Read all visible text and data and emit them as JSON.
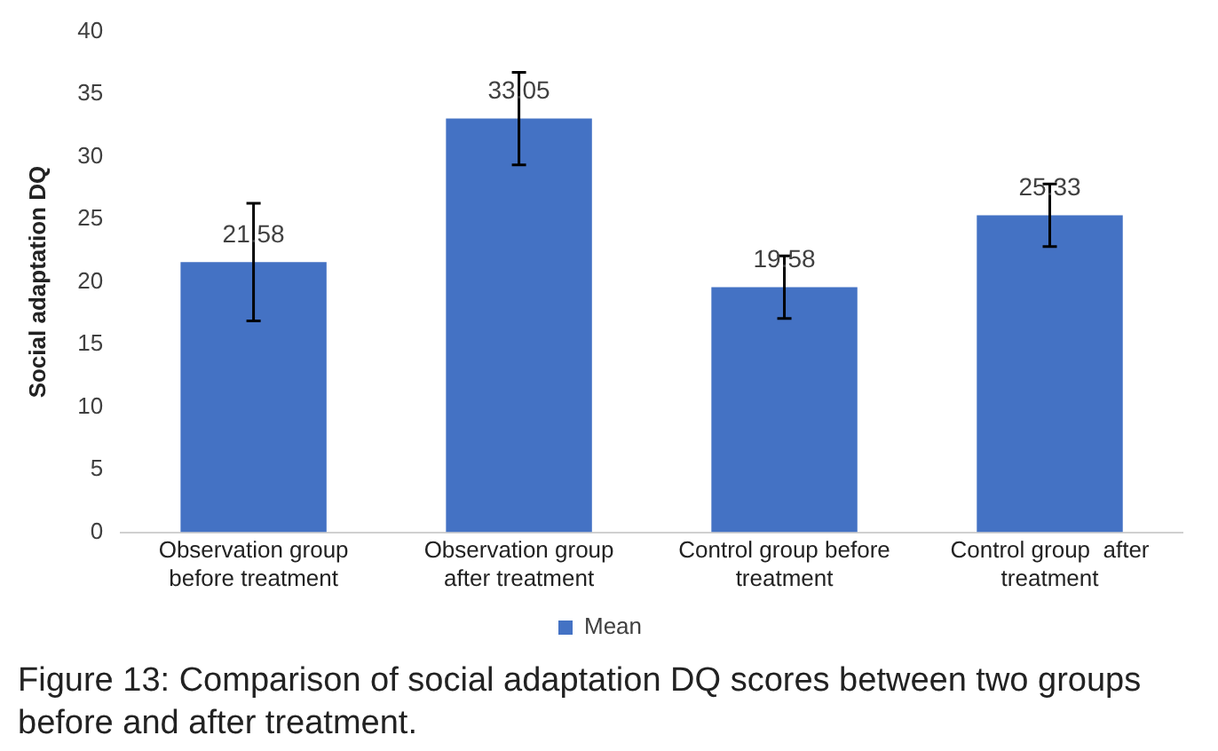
{
  "chart_data": {
    "type": "bar",
    "ylabel": "Social adaptation DQ",
    "categories": [
      "Observation group before treatment",
      "Observation group after treatment",
      "Control group before treatment",
      "Control group  after treatment"
    ],
    "series": [
      {
        "name": "Mean",
        "color": "#4472c4",
        "values": [
          21.58,
          33.05,
          19.58,
          25.33
        ],
        "errors": [
          4.7,
          3.7,
          2.5,
          2.5
        ]
      }
    ],
    "ylim": [
      0,
      40
    ],
    "yticks": [
      0,
      5,
      10,
      15,
      20,
      25,
      30,
      35,
      40
    ],
    "grid": false,
    "legend": "bottom",
    "data_labels": true,
    "annotations": [
      "Figure 13: Comparison of social adaptation DQ scores between two groups before and after treatment."
    ]
  }
}
